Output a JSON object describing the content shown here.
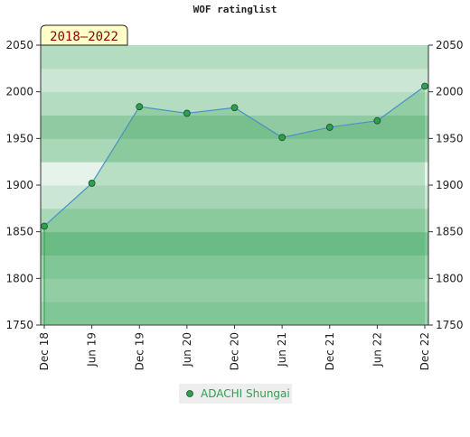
{
  "chart_data": {
    "type": "area",
    "title": "WOF ratinglist",
    "subtitle": "2018–2022",
    "categories": [
      "Dec 18",
      "Jun 19",
      "Dec 19",
      "Jun 20",
      "Dec 20",
      "Jun 21",
      "Dec 21",
      "Jun 22",
      "Dec 22"
    ],
    "series": [
      {
        "name": "ADACHI Shungai",
        "color": "#2e9e4f",
        "values": [
          1856,
          1902,
          1984,
          1977,
          1983,
          1951,
          1962,
          1969,
          2006
        ]
      }
    ],
    "ylim": [
      1750,
      2050
    ],
    "yticks": [
      1750,
      1800,
      1850,
      1900,
      1950,
      2000,
      2050
    ],
    "y2lim": [
      1750,
      2050
    ],
    "y2ticks": [
      1750,
      1800,
      1850,
      1900,
      1950,
      2000,
      2050
    ]
  }
}
